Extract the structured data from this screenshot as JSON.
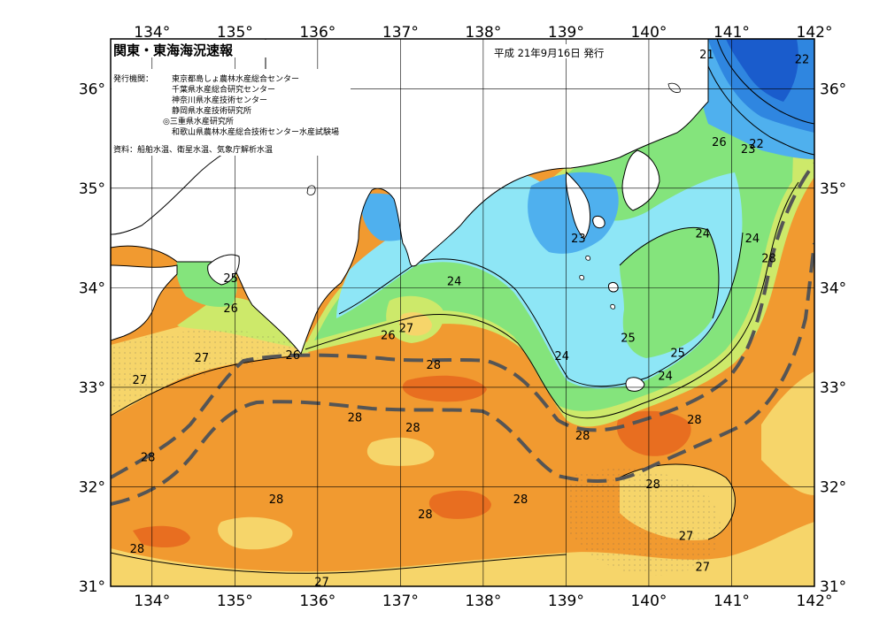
{
  "header": {
    "title": "関東・東海海況速報",
    "date": "平成 21年9月16日 発行"
  },
  "info": {
    "issuer_label": "発行機関：",
    "issuers": [
      "東京都島しょ農林水産総合センター",
      "千葉県水産総合研究センター",
      "神奈川県水産技術センター",
      "静岡県水産技術研究所",
      "◎三重県水産研究所",
      "和歌山県農林水産総合技術センター水産試験場"
    ],
    "source": "資料：船舶水温、衛星水温、気象庁解析水温"
  },
  "map": {
    "lon_range": [
      133.5,
      142
    ],
    "lat_range": [
      31,
      36.5
    ],
    "lon_ticks": [
      {
        "value": 134,
        "label": "134°"
      },
      {
        "value": 135,
        "label": "135°"
      },
      {
        "value": 136,
        "label": "136°"
      },
      {
        "value": 137,
        "label": "137°"
      },
      {
        "value": 138,
        "label": "138°"
      },
      {
        "value": 139,
        "label": "139°"
      },
      {
        "value": 140,
        "label": "140°"
      },
      {
        "value": 141,
        "label": "141°"
      },
      {
        "value": 142,
        "label": "142°"
      }
    ],
    "lat_ticks": [
      {
        "value": 31,
        "label": "31°"
      },
      {
        "value": 32,
        "label": "32°"
      },
      {
        "value": 33,
        "label": "33°"
      },
      {
        "value": 34,
        "label": "34°"
      },
      {
        "value": 35,
        "label": "35°"
      },
      {
        "value": 36,
        "label": "36°"
      }
    ],
    "temperature_colors": {
      "21": "#1a5ccc",
      "22": "#2f86e0",
      "23": "#4fb0ee",
      "24": "#8ee6f6",
      "25": "#84e47c",
      "26": "#cde96a",
      "27": "#f6d56a",
      "28": "#f19a30",
      "29": "#e86e20"
    },
    "contour_labels": [
      {
        "lon": 140.7,
        "lat": 36.35,
        "text": "21"
      },
      {
        "lon": 141.85,
        "lat": 36.3,
        "text": "22"
      },
      {
        "lon": 140.85,
        "lat": 35.47,
        "text": "26"
      },
      {
        "lon": 141.3,
        "lat": 35.45,
        "text": "22"
      },
      {
        "lon": 141.2,
        "lat": 35.4,
        "text": "23"
      },
      {
        "lon": 141.25,
        "lat": 34.5,
        "text": "24"
      },
      {
        "lon": 140.65,
        "lat": 34.55,
        "text": "24"
      },
      {
        "lon": 141.45,
        "lat": 34.3,
        "text": "28"
      },
      {
        "lon": 139.15,
        "lat": 34.5,
        "text": "23"
      },
      {
        "lon": 137.65,
        "lat": 34.07,
        "text": "24"
      },
      {
        "lon": 134.95,
        "lat": 34.1,
        "text": "25"
      },
      {
        "lon": 134.95,
        "lat": 33.8,
        "text": "26"
      },
      {
        "lon": 136.85,
        "lat": 33.53,
        "text": "26"
      },
      {
        "lon": 137.07,
        "lat": 33.6,
        "text": "27"
      },
      {
        "lon": 139.75,
        "lat": 33.5,
        "text": "25"
      },
      {
        "lon": 140.35,
        "lat": 33.35,
        "text": "25"
      },
      {
        "lon": 138.95,
        "lat": 33.32,
        "text": "24"
      },
      {
        "lon": 140.2,
        "lat": 33.12,
        "text": "24"
      },
      {
        "lon": 135.7,
        "lat": 33.33,
        "text": "26"
      },
      {
        "lon": 134.6,
        "lat": 33.3,
        "text": "27"
      },
      {
        "lon": 133.85,
        "lat": 33.08,
        "text": "27"
      },
      {
        "lon": 137.4,
        "lat": 33.23,
        "text": "28"
      },
      {
        "lon": 136.45,
        "lat": 32.7,
        "text": "28"
      },
      {
        "lon": 137.15,
        "lat": 32.6,
        "text": "28"
      },
      {
        "lon": 139.2,
        "lat": 32.52,
        "text": "28"
      },
      {
        "lon": 140.55,
        "lat": 32.68,
        "text": "28"
      },
      {
        "lon": 133.95,
        "lat": 32.3,
        "text": "28"
      },
      {
        "lon": 135.5,
        "lat": 31.88,
        "text": "28"
      },
      {
        "lon": 137.3,
        "lat": 31.73,
        "text": "28"
      },
      {
        "lon": 138.45,
        "lat": 31.88,
        "text": "28"
      },
      {
        "lon": 140.05,
        "lat": 32.03,
        "text": "28"
      },
      {
        "lon": 140.45,
        "lat": 31.51,
        "text": "27"
      },
      {
        "lon": 140.65,
        "lat": 31.2,
        "text": "27"
      },
      {
        "lon": 133.82,
        "lat": 31.38,
        "text": "28"
      },
      {
        "lon": 136.05,
        "lat": 31.05,
        "text": "27"
      }
    ]
  }
}
